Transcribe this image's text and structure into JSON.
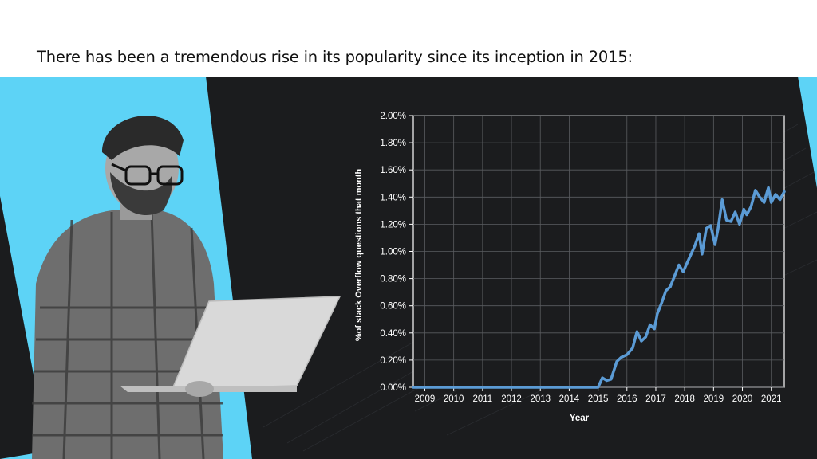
{
  "heading": "There has been a tremendous rise in its popularity since its inception in 2015:",
  "colors": {
    "accent": "#5dd3f6",
    "dark_bg": "#1b1c1e",
    "line": "#5b9bd5"
  },
  "photo": {
    "description": "person-holding-laptop-icon"
  },
  "chart_data": {
    "type": "line",
    "title": "",
    "xlabel": "Year",
    "ylabel": "%of stack Overflow questions that month",
    "ylim": [
      0,
      2.0
    ],
    "xlim": [
      2008.6,
      2021.45
    ],
    "y_ticks": [
      "0.00%",
      "0.20%",
      "0.40%",
      "0.60%",
      "0.80%",
      "1.00%",
      "1.20%",
      "1.40%",
      "1.60%",
      "1.80%",
      "2.00%"
    ],
    "x_ticks": [
      "2009",
      "2010",
      "2011",
      "2012",
      "2013",
      "2014",
      "2015",
      "2016",
      "2017",
      "2018",
      "2019",
      "2020",
      "2021"
    ],
    "grid": true,
    "series": [
      {
        "x": [
          2008.6,
          2015.0,
          2015.15,
          2015.3,
          2015.45,
          2015.65,
          2015.8,
          2016.0,
          2016.2,
          2016.35,
          2016.5,
          2016.65,
          2016.8,
          2016.95,
          2017.05,
          2017.2,
          2017.35,
          2017.5,
          2017.65,
          2017.8,
          2017.95,
          2018.05,
          2018.2,
          2018.35,
          2018.5,
          2018.6,
          2018.75,
          2018.9,
          2019.05,
          2019.15,
          2019.3,
          2019.45,
          2019.6,
          2019.75,
          2019.9,
          2020.05,
          2020.15,
          2020.3,
          2020.45,
          2020.6,
          2020.75,
          2020.9,
          2021.0,
          2021.15,
          2021.3,
          2021.45
        ],
        "y": [
          0.0,
          0.0,
          0.07,
          0.05,
          0.06,
          0.19,
          0.22,
          0.24,
          0.29,
          0.41,
          0.34,
          0.37,
          0.46,
          0.43,
          0.54,
          0.62,
          0.71,
          0.74,
          0.82,
          0.9,
          0.85,
          0.9,
          0.97,
          1.04,
          1.13,
          0.98,
          1.17,
          1.19,
          1.05,
          1.16,
          1.38,
          1.23,
          1.22,
          1.29,
          1.2,
          1.31,
          1.27,
          1.33,
          1.45,
          1.4,
          1.36,
          1.47,
          1.36,
          1.42,
          1.38,
          1.44
        ]
      }
    ]
  }
}
